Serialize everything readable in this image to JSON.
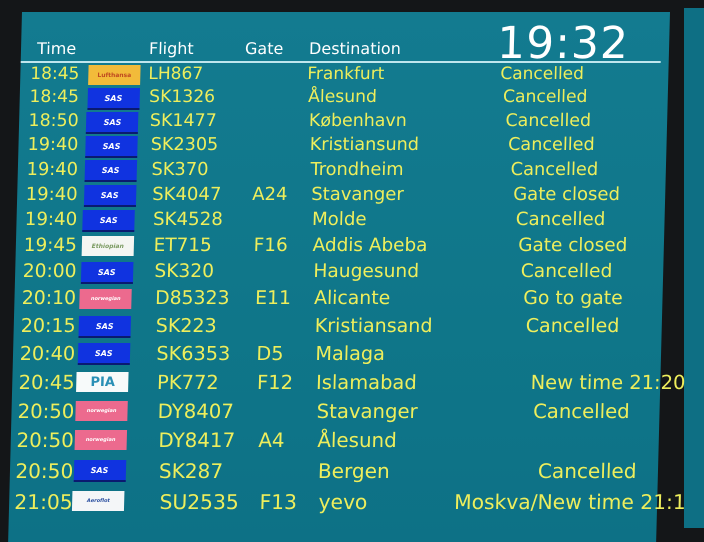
{
  "header": {
    "time": "Time",
    "flight": "Flight",
    "gate": "Gate",
    "destination": "Destination",
    "clock": "19:32"
  },
  "colors": {
    "board": "#11788c",
    "text": "#eeee5c",
    "header_text": "#ffffff"
  },
  "flights": [
    {
      "time": "18:45",
      "airline_logo": "Lufthansa",
      "logo_type": "lufthansa",
      "flight": "LH867",
      "gate": "",
      "destination": "Frankfurt",
      "status": "Cancelled"
    },
    {
      "time": "18:45",
      "airline_logo": "SAS",
      "logo_type": "sas",
      "flight": "SK1326",
      "gate": "",
      "destination": "Ålesund",
      "status": "Cancelled"
    },
    {
      "time": "18:50",
      "airline_logo": "SAS",
      "logo_type": "sas",
      "flight": "SK1477",
      "gate": "",
      "destination": "København",
      "status": "Cancelled"
    },
    {
      "time": "19:40",
      "airline_logo": "SAS",
      "logo_type": "sas",
      "flight": "SK2305",
      "gate": "",
      "destination": "Kristiansund",
      "status": "Cancelled"
    },
    {
      "time": "19:40",
      "airline_logo": "SAS",
      "logo_type": "sas",
      "flight": "SK370",
      "gate": "",
      "destination": "Trondheim",
      "status": "Cancelled"
    },
    {
      "time": "19:40",
      "airline_logo": "SAS",
      "logo_type": "sas",
      "flight": "SK4047",
      "gate": "A24",
      "destination": "Stavanger",
      "status": "Gate closed"
    },
    {
      "time": "19:40",
      "airline_logo": "SAS",
      "logo_type": "sas",
      "flight": "SK4528",
      "gate": "",
      "destination": "Molde",
      "status": "Cancelled"
    },
    {
      "time": "19:45",
      "airline_logo": "Ethiopian",
      "logo_type": "ethiopian",
      "flight": "ET715",
      "gate": "F16",
      "destination": "Addis Abeba",
      "status": "Gate closed"
    },
    {
      "time": "20:00",
      "airline_logo": "SAS",
      "logo_type": "sas",
      "flight": "SK320",
      "gate": "",
      "destination": "Haugesund",
      "status": "Cancelled"
    },
    {
      "time": "20:10",
      "airline_logo": "norwegian",
      "logo_type": "norwegian",
      "flight": "D85323",
      "gate": "E11",
      "destination": "Alicante",
      "status": "Go to gate"
    },
    {
      "time": "20:15",
      "airline_logo": "SAS",
      "logo_type": "sas",
      "flight": "SK223",
      "gate": "",
      "destination": "Kristiansand",
      "status": "Cancelled"
    },
    {
      "time": "20:40",
      "airline_logo": "SAS",
      "logo_type": "sas",
      "flight": "SK6353",
      "gate": "D5",
      "destination": "Malaga",
      "status": ""
    },
    {
      "time": "20:45",
      "airline_logo": "PIA",
      "logo_type": "pia",
      "flight": "PK772",
      "gate": "F12",
      "destination": "Islamabad",
      "status": "New time 21:20"
    },
    {
      "time": "20:50",
      "airline_logo": "norwegian",
      "logo_type": "norwegian",
      "flight": "DY8407",
      "gate": "",
      "destination": "Stavanger",
      "status": "Cancelled"
    },
    {
      "time": "20:50",
      "airline_logo": "norwegian",
      "logo_type": "norwegian",
      "flight": "DY8417",
      "gate": "A4",
      "destination": "Ålesund",
      "status": ""
    },
    {
      "time": "20:50",
      "airline_logo": "SAS",
      "logo_type": "sas",
      "flight": "SK287",
      "gate": "",
      "destination": "Bergen",
      "status": "Cancelled"
    },
    {
      "time": "21:05",
      "airline_logo": "Aeroflot",
      "logo_type": "aeroflot",
      "flight": "SU2535",
      "gate": "F13",
      "destination": "yevo",
      "status": "Moskva/New time 21:1"
    }
  ]
}
